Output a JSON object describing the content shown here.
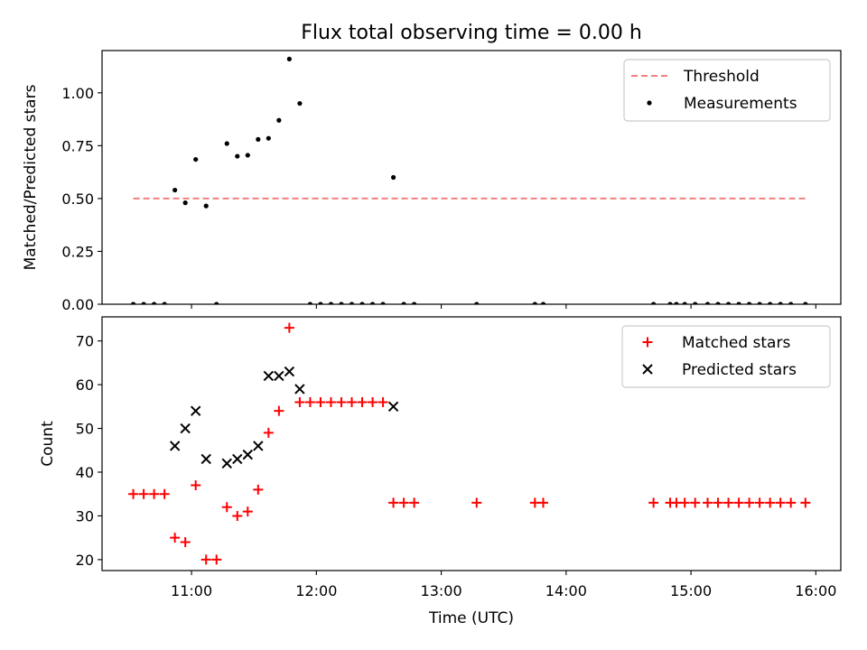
{
  "chart_data": [
    {
      "type": "scatter",
      "panel": "top",
      "title": "Flux total observing time = 0.00 h",
      "ylabel": "Matched/Predicted stars",
      "xlabel": "",
      "xlim": [
        "10:17",
        "16:12"
      ],
      "ylim": [
        0,
        1.2
      ],
      "yticks": [
        0.0,
        0.25,
        0.5,
        0.75,
        1.0
      ],
      "ytick_labels": [
        "0.00",
        "0.25",
        "0.50",
        "0.75",
        "1.00"
      ],
      "xticks": [
        "11:00",
        "12:00",
        "13:00",
        "14:00",
        "15:00",
        "16:00"
      ],
      "legend": "top-right",
      "grid": false,
      "threshold": {
        "name": "Threshold",
        "y": 0.5,
        "x_start": "10:32",
        "x_end": "15:55",
        "color": "#f47f7f",
        "style": "dashed"
      },
      "series": [
        {
          "name": "Measurements",
          "color": "#000000",
          "marker": "dot",
          "points": [
            [
              "10:32",
              0
            ],
            [
              "10:37",
              0
            ],
            [
              "10:42",
              0
            ],
            [
              "10:47",
              0
            ],
            [
              "10:52",
              0.54
            ],
            [
              "10:57",
              0.48
            ],
            [
              "11:02",
              0.685
            ],
            [
              "11:07",
              0.465
            ],
            [
              "11:12",
              0
            ],
            [
              "11:17",
              0.76
            ],
            [
              "11:22",
              0.7
            ],
            [
              "11:27",
              0.705
            ],
            [
              "11:32",
              0.78
            ],
            [
              "11:37",
              0.785
            ],
            [
              "11:42",
              0.87
            ],
            [
              "11:47",
              1.16
            ],
            [
              "11:52",
              0.95
            ],
            [
              "11:57",
              0
            ],
            [
              "12:02",
              0
            ],
            [
              "12:07",
              0
            ],
            [
              "12:12",
              0
            ],
            [
              "12:17",
              0
            ],
            [
              "12:22",
              0
            ],
            [
              "12:27",
              0
            ],
            [
              "12:32",
              0
            ],
            [
              "12:37",
              0.6
            ],
            [
              "12:42",
              0
            ],
            [
              "12:47",
              0
            ],
            [
              "13:17",
              0
            ],
            [
              "13:45",
              0
            ],
            [
              "13:49",
              0
            ],
            [
              "14:42",
              0
            ],
            [
              "14:50",
              0
            ],
            [
              "14:53",
              0
            ],
            [
              "14:57",
              0
            ],
            [
              "15:02",
              0
            ],
            [
              "15:08",
              0
            ],
            [
              "15:13",
              0
            ],
            [
              "15:18",
              0
            ],
            [
              "15:23",
              0
            ],
            [
              "15:28",
              0
            ],
            [
              "15:33",
              0
            ],
            [
              "15:38",
              0
            ],
            [
              "15:43",
              0
            ],
            [
              "15:48",
              0
            ],
            [
              "15:55",
              0
            ]
          ]
        }
      ]
    },
    {
      "type": "scatter",
      "panel": "bottom",
      "title": "",
      "xlabel": "Time (UTC)",
      "ylabel": "Count",
      "xlim": [
        "10:17",
        "16:12"
      ],
      "ylim": [
        17.5,
        75.5
      ],
      "yticks": [
        20,
        30,
        40,
        50,
        60,
        70
      ],
      "ytick_labels": [
        "20",
        "30",
        "40",
        "50",
        "60",
        "70"
      ],
      "xticks": [
        "11:00",
        "12:00",
        "13:00",
        "14:00",
        "15:00",
        "16:00"
      ],
      "legend": "top-right",
      "grid": false,
      "series": [
        {
          "name": "Matched stars",
          "color": "#ff0000",
          "marker": "plus",
          "points": [
            [
              "10:32",
              35
            ],
            [
              "10:37",
              35
            ],
            [
              "10:42",
              35
            ],
            [
              "10:47",
              35
            ],
            [
              "10:52",
              25
            ],
            [
              "10:57",
              24
            ],
            [
              "11:02",
              37
            ],
            [
              "11:07",
              20
            ],
            [
              "11:12",
              20
            ],
            [
              "11:17",
              32
            ],
            [
              "11:22",
              30
            ],
            [
              "11:27",
              31
            ],
            [
              "11:32",
              36
            ],
            [
              "11:37",
              49
            ],
            [
              "11:42",
              54
            ],
            [
              "11:47",
              73
            ],
            [
              "11:52",
              56
            ],
            [
              "11:57",
              56
            ],
            [
              "12:02",
              56
            ],
            [
              "12:07",
              56
            ],
            [
              "12:12",
              56
            ],
            [
              "12:17",
              56
            ],
            [
              "12:22",
              56
            ],
            [
              "12:27",
              56
            ],
            [
              "12:32",
              56
            ],
            [
              "12:37",
              33
            ],
            [
              "12:42",
              33
            ],
            [
              "12:47",
              33
            ],
            [
              "13:17",
              33
            ],
            [
              "13:45",
              33
            ],
            [
              "13:49",
              33
            ],
            [
              "14:42",
              33
            ],
            [
              "14:50",
              33
            ],
            [
              "14:53",
              33
            ],
            [
              "14:57",
              33
            ],
            [
              "15:02",
              33
            ],
            [
              "15:08",
              33
            ],
            [
              "15:13",
              33
            ],
            [
              "15:18",
              33
            ],
            [
              "15:23",
              33
            ],
            [
              "15:28",
              33
            ],
            [
              "15:33",
              33
            ],
            [
              "15:38",
              33
            ],
            [
              "15:43",
              33
            ],
            [
              "15:48",
              33
            ],
            [
              "15:55",
              33
            ]
          ]
        },
        {
          "name": "Predicted stars",
          "color": "#000000",
          "marker": "x",
          "points": [
            [
              "10:52",
              46
            ],
            [
              "10:57",
              50
            ],
            [
              "11:02",
              54
            ],
            [
              "11:07",
              43
            ],
            [
              "11:17",
              42
            ],
            [
              "11:22",
              43
            ],
            [
              "11:27",
              44
            ],
            [
              "11:32",
              46
            ],
            [
              "11:37",
              62
            ],
            [
              "11:42",
              62
            ],
            [
              "11:47",
              63
            ],
            [
              "11:52",
              59
            ],
            [
              "12:37",
              55
            ]
          ]
        }
      ]
    }
  ]
}
